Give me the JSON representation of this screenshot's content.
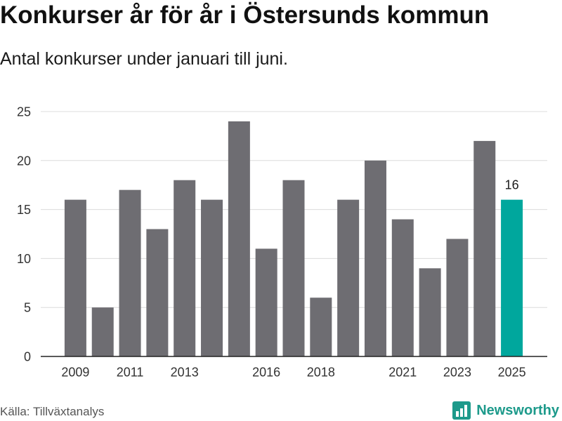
{
  "chart_data": {
    "type": "bar",
    "title": "Konkurser år för år i Östersunds kommun",
    "subtitle": "Antal konkurser under januari till juni.",
    "x": [
      2009,
      2010,
      2011,
      2012,
      2013,
      2014,
      2015,
      2016,
      2017,
      2018,
      2019,
      2020,
      2021,
      2022,
      2023,
      2024,
      2025
    ],
    "values": [
      16,
      5,
      17,
      13,
      18,
      16,
      24,
      11,
      18,
      6,
      16,
      20,
      14,
      9,
      12,
      22,
      16
    ],
    "ylim": [
      0,
      25
    ],
    "yticks": [
      0,
      5,
      10,
      15,
      20,
      25
    ],
    "xtick_labels": [
      "2009",
      "2011",
      "2013",
      "2016",
      "2018",
      "2021",
      "2023",
      "2025"
    ],
    "highlight": {
      "x": 2025,
      "label": "16"
    },
    "grid": true
  },
  "footer": {
    "source": "Källa: Tillväxtanalys",
    "brand": "Newsworthy",
    "brand_icon": "newsworthy-logo-icon"
  },
  "colors": {
    "bar": "#6e6d72",
    "highlight": "#00a79d",
    "grid": "#dcdcdc",
    "axis": "#222222",
    "brand": "#1d9a8b"
  }
}
